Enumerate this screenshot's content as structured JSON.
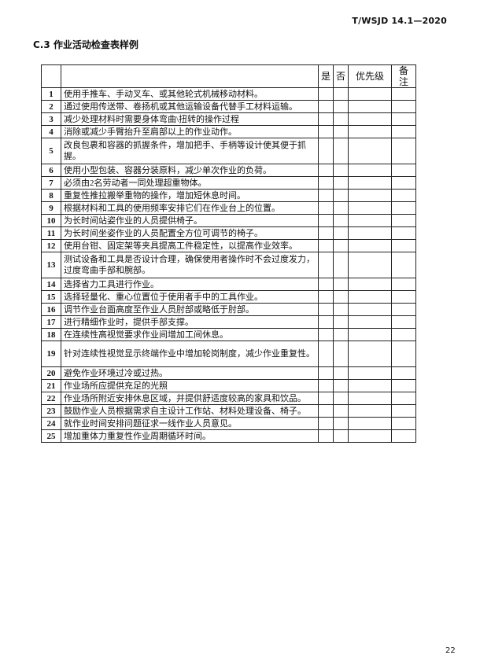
{
  "header": {
    "doc_id": "T/WSJD 14.1—2020"
  },
  "section_title": "C.3 作业活动检查表样例",
  "table": {
    "columns": [
      "",
      "",
      "是",
      "否",
      "优先级",
      "备 注"
    ],
    "rows": [
      {
        "num": "1",
        "text": "使用手推车、手动叉车、或其他轮式机械移动材料。"
      },
      {
        "num": "2",
        "text": "通过使用传送带、卷扬机或其他运输设备代替手工材料运输。"
      },
      {
        "num": "3",
        "text": "减少处理材料时需要身体弯曲\\扭转的操作过程"
      },
      {
        "num": "4",
        "text": "消除或减少手臂抬升至肩部以上的作业动作。"
      },
      {
        "num": "5",
        "text": "改良包裹和容器的抓握条件，增加把手、手柄等设计使其便于抓握。",
        "tall": true
      },
      {
        "num": "6",
        "text": "使用小型包装、容器分装原料，减少单次作业的负荷。"
      },
      {
        "num": "7",
        "text": "必须由2名劳动者一同处理超重物体。"
      },
      {
        "num": "8",
        "text": "重复性推拉搬举重物的操作，增加短休息时间。"
      },
      {
        "num": "9",
        "text": "根据材料和工具的使用频率安排它们在作业台上的位置。"
      },
      {
        "num": "10",
        "text": "为长时间站姿作业的人员提供椅子。"
      },
      {
        "num": "11",
        "text": "为长时间坐姿作业的人员配置全方位可调节的椅子。"
      },
      {
        "num": "12",
        "text": "使用台钳、固定架等夹具提高工件稳定性，以提高作业效率。"
      },
      {
        "num": "13",
        "text": "测试设备和工具是否设计合理，确保使用者操作时不会过度发力，过度弯曲手部和腕部。",
        "tall": true
      },
      {
        "num": "14",
        "text": "选择省力工具进行作业。"
      },
      {
        "num": "15",
        "text": "选择轻量化、重心位置位于使用者手中的工具作业。"
      },
      {
        "num": "16",
        "text": "调节作业台面高度至作业人员肘部或略低于肘部。"
      },
      {
        "num": "17",
        "text": "进行精细作业时，提供手部支撑。"
      },
      {
        "num": "18",
        "text": "在连续性高视觉要求作业间增加工间休息。"
      },
      {
        "num": "19",
        "text": "针对连续性视觉显示终端作业中增加轮岗制度，减少作业重复性。",
        "tall": true
      },
      {
        "num": "20",
        "text": "避免作业环境过冷或过热。"
      },
      {
        "num": "21",
        "text": "作业场所应提供充足的光照"
      },
      {
        "num": "22",
        "text": "作业场所附近安排休息区域，并提供舒适度较高的家具和饮品。"
      },
      {
        "num": "23",
        "text": "鼓励作业人员根据需求自主设计工作站、材料处理设备、椅子。"
      },
      {
        "num": "24",
        "text": "就作业时间安排问题征求一线作业人员意见。"
      },
      {
        "num": "25",
        "text": "增加重体力重复性作业周期循环时间。"
      }
    ]
  },
  "footer": {
    "page_number": "22"
  }
}
